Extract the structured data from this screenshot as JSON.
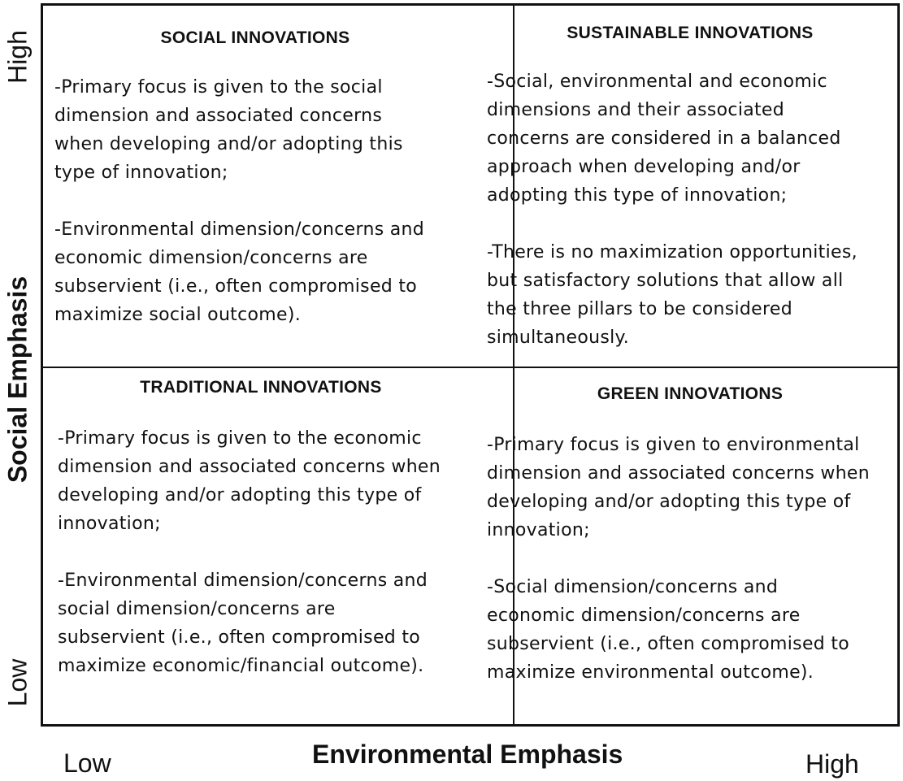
{
  "quadrants": {
    "social": {
      "title": "SOCIAL INNOVATIONS",
      "para1": "-Primary focus is given to the social\ndimension and associated concerns\nwhen developing and/or adopting this\ntype of innovation;",
      "para2": "-Environmental dimension/concerns and\neconomic dimension/concerns are\nsubservient (i.e., often compromised to\nmaximize social outcome)."
    },
    "sustainable": {
      "title": "SUSTAINABLE INNOVATIONS",
      "para1": "-Social, environmental and economic\ndimensions and their associated\nconcerns are considered in a balanced\napproach when developing and/or\nadopting this type of innovation;",
      "para2": "-There is no maximization opportunities,\nbut satisfactory solutions that allow all\nthe three pillars to be considered\nsimultaneously."
    },
    "traditional": {
      "title": "TRADITIONAL INNOVATIONS",
      "para1": "-Primary focus is given to the economic\ndimension and associated concerns when\ndeveloping and/or adopting this type of\ninnovation;",
      "para2": "-Environmental dimension/concerns and\nsocial dimension/concerns are\nsubservient (i.e., often compromised to\nmaximize economic/financial outcome)."
    },
    "green": {
      "title": "GREEN INNOVATIONS",
      "para1": "-Primary focus is given to environmental\ndimension and associated concerns when\ndeveloping and/or adopting this type of\ninnovation;",
      "para2": "-Social dimension/concerns and\neconomic dimension/concerns are\nsubservient (i.e., often compromised to\nmaximize environmental  outcome)."
    }
  },
  "axes": {
    "y_title": "Social Emphasis",
    "y_high": "High",
    "y_low": "Low",
    "x_title": "Environmental Emphasis",
    "x_low": "Low",
    "x_high": "High"
  }
}
